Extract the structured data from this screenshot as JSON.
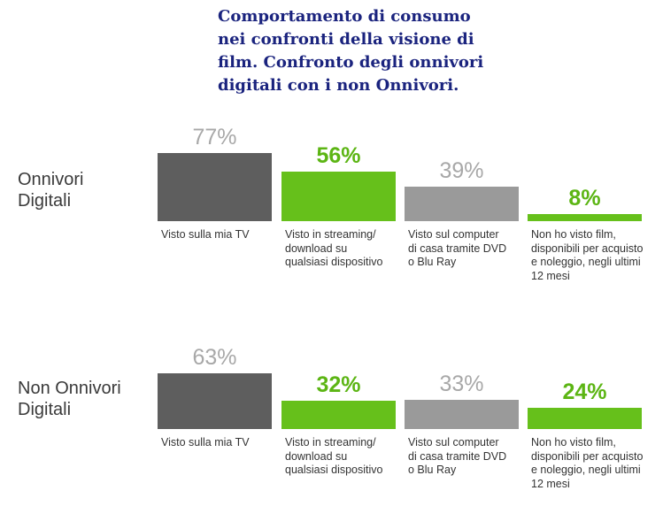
{
  "title_lines": [
    "Comportamento di consumo",
    "nei confronti della visione di",
    "film. Confronto degli onnivori",
    "digitali con i non Onnivori."
  ],
  "colors": {
    "title": "#1a237e",
    "dark_gray": "#5e5e5e",
    "light_gray": "#9a9a9a",
    "green": "#66c01b",
    "pct_gray": "#a8a8a8",
    "pct_green": "#5cb514"
  },
  "chart_data": {
    "type": "bar",
    "categories": [
      [
        "Visto sulla mia TV"
      ],
      [
        "Visto in streaming/",
        "download su",
        "qualsiasi dispositivo"
      ],
      [
        "Visto sul computer",
        "di casa tramite DVD",
        "o Blu Ray"
      ],
      [
        "Non ho visto film,",
        "disponibili per acquisto",
        "e noleggio, negli ultimi",
        "12 mesi"
      ]
    ],
    "bar_colors": [
      "dark_gray",
      "green",
      "light_gray",
      "green"
    ],
    "label_colors": [
      "pct_gray",
      "pct_green",
      "pct_gray",
      "pct_green"
    ],
    "label_bold": [
      false,
      true,
      false,
      true
    ],
    "series": [
      {
        "name_lines": [
          "Onnivori",
          "Digitali"
        ],
        "values": [
          77,
          56,
          39,
          8
        ]
      },
      {
        "name_lines": [
          "Non Onnivori",
          "Digitali"
        ],
        "values": [
          63,
          32,
          33,
          24
        ]
      }
    ],
    "ylim": [
      0,
      100
    ]
  }
}
